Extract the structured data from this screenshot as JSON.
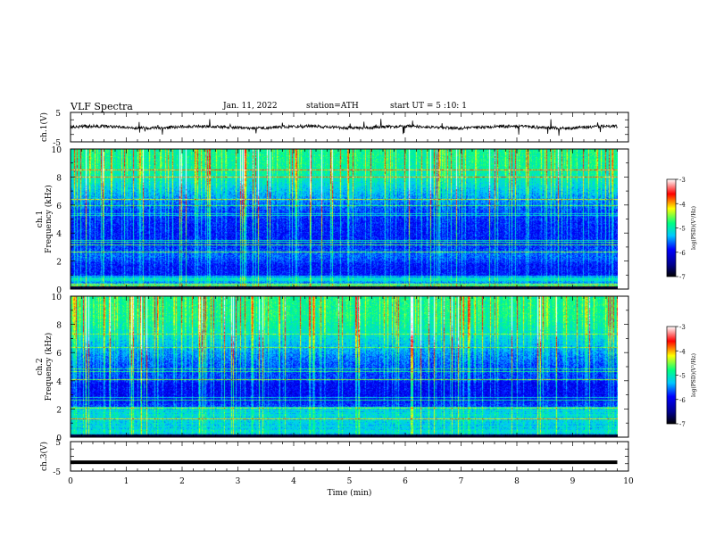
{
  "header": {
    "title": "VLF Spectra",
    "date": "Jan. 11, 2022",
    "station": "station=ATH",
    "start": "start UT =  5 :10: 1"
  },
  "chart_data": [
    {
      "type": "line",
      "panel": "ch1-waveform",
      "ylabel": "ch.1(V)",
      "yticks": [
        "5",
        "-5"
      ],
      "ylim": [
        -5,
        5
      ],
      "xlim": [
        0,
        10
      ],
      "description_values": {
        "baseline_V": 0,
        "spike_range_V": [
          -3,
          3
        ]
      }
    },
    {
      "type": "heatmap",
      "panel": "ch1-spectrogram",
      "ylabel": "ch.1\nFrequency (kHz)",
      "ylabel_lines": [
        "ch.1",
        "Frequency (kHz)"
      ],
      "yticks": [
        "0",
        "2",
        "4",
        "6",
        "8",
        "10"
      ],
      "ylim": [
        0,
        10
      ],
      "xlim": [
        0,
        10
      ],
      "colorbar": {
        "label": "log(PSD)(V²/Hz)",
        "ticks": [
          "-3",
          "-4",
          "-5",
          "-6",
          "-7"
        ],
        "range": [
          -7,
          -3
        ]
      }
    },
    {
      "type": "heatmap",
      "panel": "ch2-spectrogram",
      "ylabel": "ch.2\nFrequency (kHz)",
      "ylabel_lines": [
        "ch.2",
        "Frequency (kHz)"
      ],
      "yticks": [
        "0",
        "2",
        "4",
        "6",
        "8",
        "10"
      ],
      "ylim": [
        0,
        10
      ],
      "xlim": [
        0,
        10
      ],
      "colorbar": {
        "label": "log(PSD)(V²/Hz)",
        "ticks": [
          "-3",
          "-4",
          "-5",
          "-6",
          "-7"
        ],
        "range": [
          -7,
          -3
        ]
      }
    },
    {
      "type": "line",
      "panel": "ch3-waveform",
      "ylabel": "ch.3(V)",
      "yticks": [
        "5",
        "-5"
      ],
      "ylim": [
        -5,
        5
      ],
      "xlim": [
        0,
        10
      ],
      "description_values": {
        "baseline_V": -2
      }
    }
  ],
  "xaxis": {
    "label": "Time (min)",
    "ticks": [
      "0",
      "1",
      "2",
      "3",
      "4",
      "5",
      "6",
      "7",
      "8",
      "9",
      "10"
    ],
    "range": [
      0,
      10
    ],
    "data_end_min": 9.8
  },
  "colors": {
    "colormap": [
      "#000000",
      "#00008b",
      "#0000ff",
      "#00c8ff",
      "#00ff80",
      "#ffff00",
      "#ff0000",
      "#ffffff"
    ],
    "trace": "#000000"
  }
}
